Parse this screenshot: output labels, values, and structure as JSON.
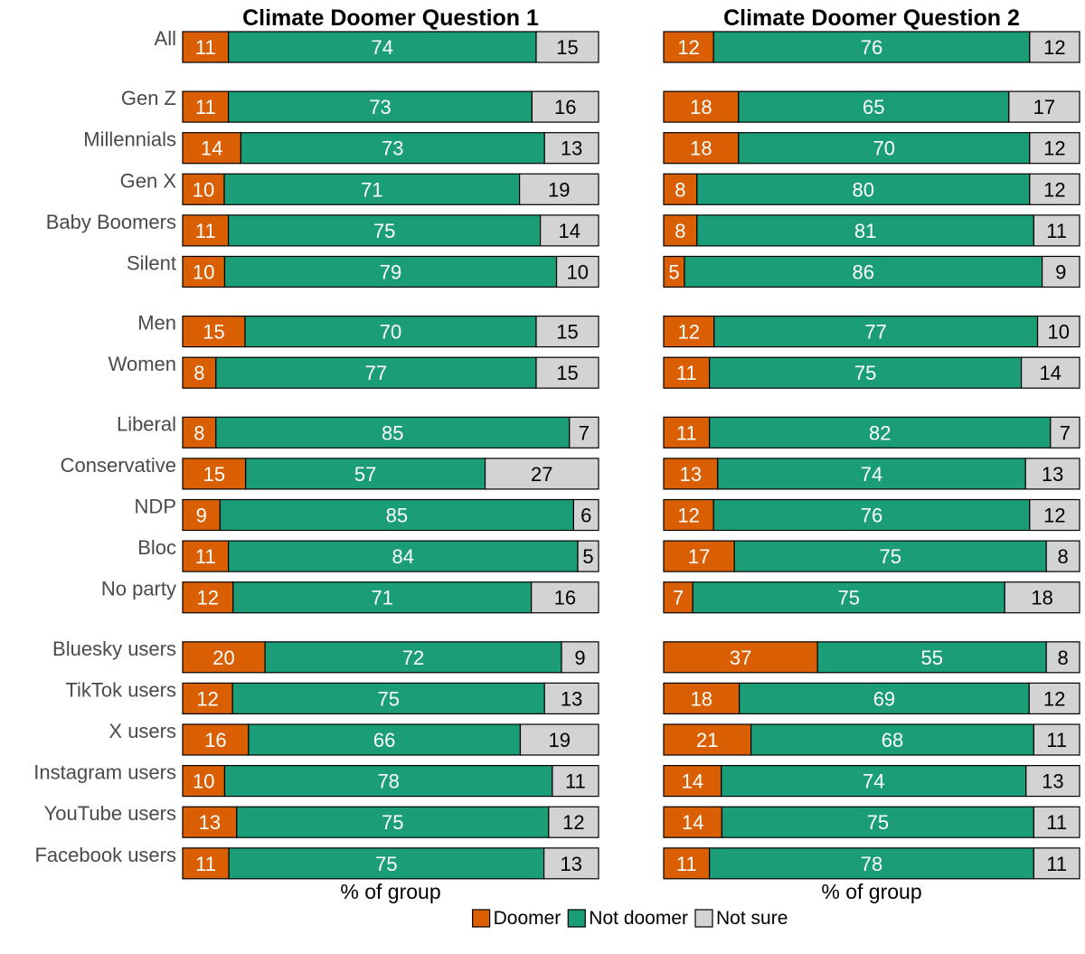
{
  "chart_data": {
    "type": "bar",
    "stacked": true,
    "orientation": "horizontal",
    "row_labels": [
      "All",
      "Gen Z",
      "Millennials",
      "Gen X",
      "Baby Boomers",
      "Silent",
      "Men",
      "Women",
      "Liberal",
      "Conservative",
      "NDP",
      "Bloc",
      "No party",
      "Bluesky users",
      "TikTok users",
      "X users",
      "Instagram users",
      "YouTube users",
      "Facebook users"
    ],
    "groups": [
      [
        "All"
      ],
      [
        "Gen Z",
        "Millennials",
        "Gen X",
        "Baby Boomers",
        "Silent"
      ],
      [
        "Men",
        "Women"
      ],
      [
        "Liberal",
        "Conservative",
        "NDP",
        "Bloc",
        "No party"
      ],
      [
        "Bluesky users",
        "TikTok users",
        "X users",
        "Instagram users",
        "YouTube users",
        "Facebook users"
      ]
    ],
    "legend": {
      "placement": "bottom-center",
      "entries": [
        {
          "name": "Doomer",
          "color": "#d95f02"
        },
        {
          "name": "Not doomer",
          "color": "#1b9e77"
        },
        {
          "name": "Not sure",
          "color": "#d3d3d3"
        }
      ]
    },
    "panels": [
      {
        "title": "Climate Doomer Question 1",
        "xlabel": "% of group",
        "xlim": [
          0,
          100
        ],
        "series": [
          {
            "name": "Doomer",
            "values": [
              11,
              11,
              14,
              10,
              11,
              10,
              15,
              8,
              8,
              15,
              9,
              11,
              12,
              20,
              12,
              16,
              10,
              13,
              11
            ]
          },
          {
            "name": "Not doomer",
            "values": [
              74,
              73,
              73,
              71,
              75,
              79,
              70,
              77,
              85,
              57,
              85,
              84,
              71,
              72,
              75,
              66,
              78,
              75,
              75
            ]
          },
          {
            "name": "Not sure",
            "values": [
              15,
              16,
              13,
              19,
              14,
              10,
              15,
              15,
              7,
              27,
              6,
              5,
              16,
              9,
              13,
              19,
              11,
              12,
              13
            ]
          }
        ]
      },
      {
        "title": "Climate Doomer Question 2",
        "xlabel": "% of group",
        "xlim": [
          0,
          100
        ],
        "series": [
          {
            "name": "Doomer",
            "values": [
              12,
              18,
              18,
              8,
              8,
              5,
              12,
              11,
              11,
              13,
              12,
              17,
              7,
              37,
              18,
              21,
              14,
              14,
              11
            ]
          },
          {
            "name": "Not doomer",
            "values": [
              76,
              65,
              70,
              80,
              81,
              86,
              77,
              75,
              82,
              74,
              76,
              75,
              75,
              55,
              69,
              68,
              74,
              75,
              78
            ]
          },
          {
            "name": "Not sure",
            "values": [
              12,
              17,
              12,
              12,
              11,
              9,
              10,
              14,
              7,
              13,
              12,
              8,
              18,
              8,
              12,
              11,
              13,
              11,
              11
            ]
          }
        ]
      }
    ]
  }
}
